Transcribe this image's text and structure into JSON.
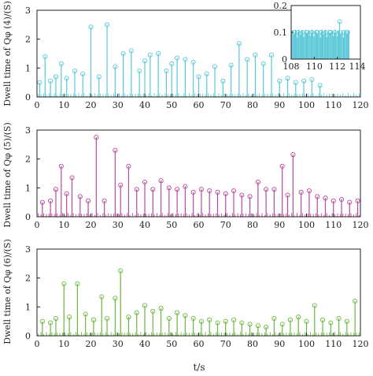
{
  "xlabel": "t/s",
  "chart_data": [
    {
      "type": "stem",
      "ylabel": "Dwell time of Qφ (4)/(S)",
      "color": "#5bc8d8",
      "xlim": [
        0,
        120
      ],
      "ylim": [
        0,
        3
      ],
      "xticks": [
        0,
        10,
        20,
        30,
        40,
        50,
        60,
        70,
        80,
        90,
        100,
        110,
        120
      ],
      "yticks": [
        0,
        1,
        2,
        3
      ],
      "x": [
        1,
        3,
        5,
        7,
        9,
        11,
        14,
        17,
        20,
        23,
        26,
        29,
        32,
        35,
        38,
        40,
        42,
        45,
        48,
        50,
        52,
        55,
        58,
        60,
        63,
        66,
        69,
        72,
        75,
        78,
        81,
        84,
        87,
        90,
        93,
        96,
        99,
        102,
        105
      ],
      "y": [
        0.5,
        1.4,
        0.55,
        0.7,
        1.15,
        0.65,
        0.9,
        0.8,
        2.42,
        0.7,
        2.5,
        1.05,
        1.5,
        1.6,
        0.9,
        1.25,
        1.45,
        1.5,
        0.9,
        1.15,
        1.35,
        1.3,
        1.2,
        0.7,
        0.8,
        1.05,
        0.55,
        1.1,
        1.85,
        1.3,
        1.45,
        1.15,
        1.45,
        0.55,
        0.65,
        0.5,
        0.55,
        0.6,
        0.4
      ],
      "inset": {
        "xlim": [
          108,
          114
        ],
        "ylim": [
          0,
          0.2
        ],
        "xticks": [
          108,
          110,
          112,
          114
        ],
        "yticks": [
          0,
          0.1,
          0.2
        ],
        "x": [
          108.3,
          108.6,
          109.0,
          109.4,
          109.8,
          110.2,
          110.6,
          111.0,
          111.4,
          111.8,
          112.2,
          112.6,
          112.9
        ],
        "y": [
          0.1,
          0.1,
          0.1,
          0.1,
          0.1,
          0.1,
          0.1,
          0.1,
          0.1,
          0.1,
          0.14,
          0.1,
          0.1
        ]
      }
    },
    {
      "type": "stem",
      "ylabel": "Dwell time of Qφ (5)/(S)",
      "color": "#b8499e",
      "xlim": [
        0,
        120
      ],
      "ylim": [
        0,
        3
      ],
      "xticks": [
        0,
        10,
        20,
        30,
        40,
        50,
        60,
        70,
        80,
        90,
        100,
        110,
        120
      ],
      "yticks": [
        0,
        1,
        2,
        3
      ],
      "x": [
        2,
        5,
        7,
        9,
        11,
        13,
        16,
        19,
        22,
        25,
        29,
        31,
        34,
        37,
        40,
        43,
        46,
        49,
        52,
        55,
        58,
        61,
        64,
        67,
        70,
        73,
        76,
        79,
        82,
        85,
        88,
        91,
        93,
        95,
        98,
        101,
        104,
        107,
        110,
        113,
        116,
        119
      ],
      "y": [
        0.5,
        0.55,
        0.95,
        1.75,
        0.8,
        1.35,
        0.7,
        0.55,
        2.75,
        0.55,
        2.3,
        1.1,
        1.75,
        0.95,
        1.2,
        0.95,
        1.25,
        1.0,
        0.95,
        1.05,
        0.85,
        0.95,
        0.9,
        0.85,
        0.8,
        0.9,
        0.75,
        0.7,
        1.2,
        0.95,
        0.95,
        1.75,
        0.75,
        2.15,
        0.85,
        0.9,
        0.7,
        0.65,
        0.55,
        0.6,
        0.5,
        0.55
      ]
    },
    {
      "type": "stem",
      "ylabel": "Dwell time of Qφ (6)/(S)",
      "color": "#6ab83f",
      "xlim": [
        0,
        120
      ],
      "ylim": [
        0,
        3
      ],
      "xticks": [
        0,
        10,
        20,
        30,
        40,
        50,
        60,
        70,
        80,
        90,
        100,
        110,
        120
      ],
      "yticks": [
        0,
        1,
        2,
        3
      ],
      "x": [
        2,
        5,
        7,
        10,
        12,
        15,
        18,
        21,
        24,
        26,
        29,
        31,
        34,
        37,
        40,
        43,
        46,
        49,
        52,
        55,
        58,
        61,
        64,
        67,
        70,
        73,
        76,
        79,
        82,
        85,
        88,
        91,
        94,
        97,
        100,
        103,
        106,
        109,
        112,
        115,
        118
      ],
      "y": [
        0.5,
        0.45,
        0.6,
        1.8,
        0.65,
        1.8,
        0.75,
        0.55,
        1.35,
        0.6,
        1.3,
        2.25,
        0.65,
        0.8,
        1.05,
        0.85,
        0.95,
        0.6,
        0.8,
        0.7,
        0.6,
        0.5,
        0.55,
        0.45,
        0.5,
        0.55,
        0.45,
        0.4,
        0.35,
        0.3,
        0.6,
        0.4,
        0.55,
        0.65,
        0.5,
        1.05,
        0.55,
        0.45,
        0.6,
        0.5,
        1.2
      ]
    }
  ]
}
